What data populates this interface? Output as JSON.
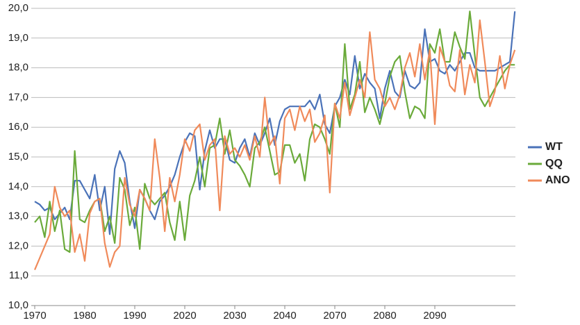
{
  "chart_data": {
    "type": "line",
    "categories": [
      "1970",
      null,
      null,
      null,
      null,
      null,
      null,
      null,
      null,
      null,
      "1980",
      null,
      null,
      null,
      null,
      null,
      null,
      null,
      null,
      null,
      "1990",
      null,
      null,
      null,
      null,
      null,
      null,
      null,
      null,
      null,
      "2020",
      null,
      null,
      null,
      null,
      null,
      null,
      null,
      null,
      null,
      "2030",
      null,
      null,
      null,
      null,
      null,
      null,
      null,
      null,
      null,
      "2040",
      null,
      null,
      null,
      null,
      null,
      null,
      null,
      null,
      null,
      "2070",
      null,
      null,
      null,
      null,
      null,
      null,
      null,
      null,
      null,
      "2080",
      null,
      null,
      null,
      null,
      null,
      null,
      null,
      null,
      null,
      "2090",
      null,
      null,
      null,
      null,
      null,
      null,
      null,
      null,
      null,
      null,
      null,
      null,
      null,
      null,
      null,
      null
    ],
    "series": [
      {
        "name": "WT",
        "color": "#4a72b8",
        "values": [
          13.5,
          13.4,
          13.2,
          13.3,
          12.9,
          13.1,
          13.3,
          12.9,
          14.2,
          14.2,
          13.9,
          13.6,
          14.4,
          13.2,
          14.0,
          12.4,
          14.6,
          15.2,
          14.8,
          13.5,
          12.6,
          13.9,
          13.6,
          13.2,
          12.9,
          13.5,
          13.7,
          14.0,
          14.4,
          15.0,
          15.5,
          15.8,
          15.7,
          13.9,
          15.2,
          15.9,
          15.3,
          15.6,
          15.6,
          14.9,
          14.8,
          15.3,
          15.6,
          15.0,
          15.8,
          15.4,
          15.8,
          16.3,
          15.4,
          16.2,
          16.6,
          16.7,
          16.7,
          16.7,
          16.7,
          16.9,
          16.6,
          17.1,
          16.1,
          15.8,
          16.7,
          17.0,
          17.6,
          17.1,
          18.4,
          17.3,
          17.8,
          17.5,
          17.3,
          16.3,
          17.3,
          17.9,
          17.2,
          17.0,
          17.9,
          17.4,
          17.3,
          17.5,
          19.3,
          18.2,
          18.3,
          17.9,
          17.8,
          18.1,
          17.9,
          18.2,
          18.5,
          18.5,
          18.0,
          17.9,
          17.9,
          17.9,
          17.9,
          18.0,
          18.1,
          18.2,
          19.9
        ]
      },
      {
        "name": "QQ",
        "color": "#6aaa3a",
        "values": [
          12.8,
          13.0,
          12.3,
          13.5,
          12.5,
          13.2,
          11.9,
          11.8,
          15.2,
          12.9,
          12.8,
          13.2,
          13.5,
          13.6,
          12.5,
          13.0,
          12.1,
          14.3,
          13.9,
          12.7,
          13.3,
          11.9,
          14.1,
          13.6,
          13.4,
          13.6,
          13.8,
          12.8,
          12.2,
          13.5,
          12.2,
          13.7,
          14.2,
          15.0,
          14.0,
          15.3,
          15.4,
          16.3,
          15.1,
          15.9,
          14.9,
          14.7,
          14.4,
          14.0,
          15.3,
          15.5,
          16.0,
          15.2,
          14.4,
          14.5,
          15.4,
          15.4,
          14.8,
          15.1,
          14.2,
          15.6,
          16.1,
          16.0,
          15.6,
          15.1,
          16.8,
          16.0,
          18.8,
          16.6,
          17.1,
          18.2,
          16.5,
          17.0,
          16.6,
          16.1,
          16.8,
          17.7,
          18.2,
          18.4,
          17.2,
          16.3,
          16.7,
          16.6,
          16.3,
          18.8,
          18.5,
          19.3,
          18.2,
          18.2,
          19.2,
          18.7,
          18.3,
          19.9,
          18.4,
          17.0,
          16.7,
          17.0,
          17.3,
          17.6,
          17.9,
          18.1,
          18.1
        ]
      },
      {
        "name": "ANO",
        "color": "#f08a5a",
        "values": [
          11.2,
          11.6,
          12.0,
          12.4,
          14.0,
          13.3,
          13.0,
          13.2,
          11.8,
          12.4,
          11.5,
          13.1,
          13.5,
          13.6,
          12.1,
          11.3,
          11.8,
          12.0,
          14.3,
          13.4,
          13.0,
          13.9,
          13.6,
          13.2,
          15.6,
          14.3,
          12.5,
          14.3,
          13.5,
          14.4,
          15.6,
          15.2,
          15.9,
          16.1,
          14.9,
          15.4,
          15.6,
          13.2,
          15.7,
          15.1,
          15.3,
          15.0,
          15.4,
          14.9,
          15.7,
          15.0,
          17.0,
          15.4,
          15.7,
          14.1,
          16.3,
          16.6,
          15.9,
          16.7,
          16.2,
          16.6,
          15.5,
          15.8,
          16.4,
          13.8,
          16.8,
          16.3,
          17.5,
          16.4,
          17.0,
          17.6,
          17.0,
          19.2,
          17.6,
          17.3,
          16.7,
          17.0,
          16.6,
          17.1,
          18.0,
          18.5,
          17.7,
          18.8,
          17.6,
          18.6,
          16.1,
          18.7,
          18.2,
          17.4,
          17.2,
          18.6,
          17.1,
          18.1,
          17.5,
          19.6,
          18.2,
          16.7,
          17.2,
          18.4,
          17.3,
          18.1,
          18.6
        ]
      }
    ],
    "ylim": [
      10,
      20
    ],
    "yticks": [
      {
        "value": 10,
        "label": "10,0"
      },
      {
        "value": 11,
        "label": "11,0"
      },
      {
        "value": 12,
        "label": "12,0"
      },
      {
        "value": 13,
        "label": "13,0"
      },
      {
        "value": 14,
        "label": "14,0"
      },
      {
        "value": 15,
        "label": "15,0"
      },
      {
        "value": 16,
        "label": "16,0"
      },
      {
        "value": 17,
        "label": "17,0"
      },
      {
        "value": 18,
        "label": "18,0"
      },
      {
        "value": 19,
        "label": "19,0"
      },
      {
        "value": 20,
        "label": "20,0"
      }
    ],
    "grid": true,
    "legend": "right"
  }
}
